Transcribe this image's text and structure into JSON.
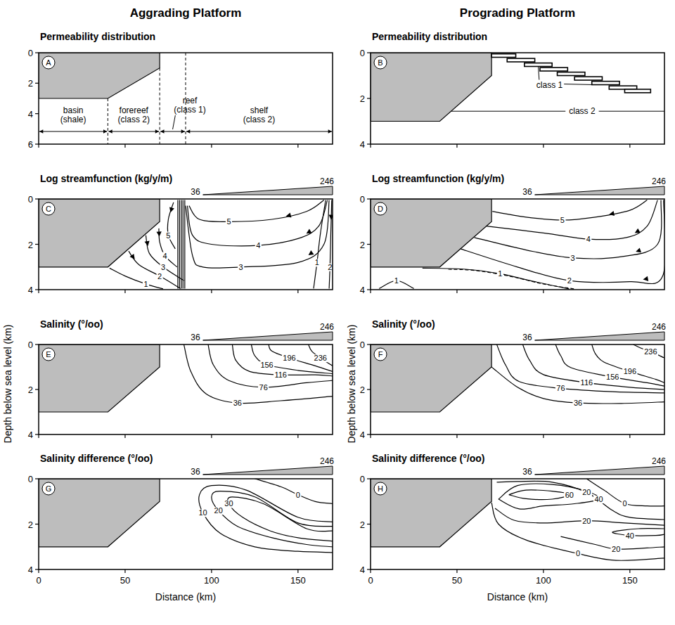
{
  "headers": [
    "Aggrading Platform",
    "Prograding Platform"
  ],
  "grey_region": {
    "x": [
      0,
      70,
      70,
      40,
      0
    ],
    "y": [
      0,
      0,
      1,
      3,
      3
    ]
  },
  "chart_data": [
    {
      "type": "section",
      "label": "A",
      "title": "Permeability distribution",
      "xlim": [
        0,
        170
      ],
      "ylim": [
        0,
        6
      ],
      "xticks": [
        0,
        50,
        100,
        150
      ],
      "yticks": [
        0,
        2,
        4,
        6
      ],
      "tick_labels": "y",
      "zones": [
        {
          "name": "basin",
          "material": "(shale)",
          "from": 0,
          "to": 40
        },
        {
          "name": "forereef",
          "material": "(class 2)",
          "from": 40,
          "to": 70
        },
        {
          "name": "reef",
          "material": "(class 1)",
          "from": 70,
          "to": 85
        },
        {
          "name": "shelf",
          "material": "(class 2)",
          "from": 85,
          "to": 170
        }
      ]
    },
    {
      "type": "section",
      "label": "B",
      "title": "Permeability distribution",
      "xlim": [
        0,
        170
      ],
      "ylim": [
        0,
        4
      ],
      "xticks": [
        0,
        50,
        100,
        150
      ],
      "yticks": [
        0,
        2,
        4
      ],
      "tick_labels": "y",
      "layers": {
        "name": "class 1",
        "x_start": [
          70,
          79,
          89,
          98,
          108,
          118,
          128,
          138,
          147
        ],
        "x_end": [
          84,
          95,
          105,
          114,
          124,
          134,
          144,
          154,
          162
        ],
        "top": [
          0.05,
          0.25,
          0.45,
          0.65,
          0.85,
          1.05,
          1.25,
          1.45,
          1.6
        ],
        "bottom": [
          0.2,
          0.4,
          0.6,
          0.8,
          1.0,
          1.2,
          1.4,
          1.6,
          1.75
        ]
      },
      "matrix": "class 2"
    },
    {
      "type": "contour",
      "label": "C",
      "title": "Log streamfunction (kg/y/m)",
      "xlim": [
        0,
        170
      ],
      "ylim": [
        0,
        4
      ],
      "xticks": [
        0,
        50,
        100,
        150
      ],
      "yticks": [
        0,
        2,
        4
      ],
      "tick_labels": "y",
      "surface_salinity": {
        "values": [
          36,
          246
        ],
        "x": [
          95,
          170
        ]
      },
      "series": [
        {
          "level": 5,
          "marker": "arrow",
          "x": [
            165,
            155,
            135,
            110,
            93,
            87
          ],
          "y": [
            0.05,
            0.55,
            0.9,
            1.0,
            0.9,
            0.3
          ]
        },
        {
          "level": 4,
          "marker": "arrow",
          "x": [
            167,
            162,
            150,
            127,
            100,
            89,
            86
          ],
          "y": [
            0.05,
            1.2,
            1.75,
            2.05,
            2.0,
            1.6,
            0.3
          ]
        },
        {
          "level": 3,
          "marker": "arrow",
          "x": [
            168,
            165,
            150,
            117,
            95,
            89,
            85
          ],
          "y": [
            0.05,
            2.0,
            2.8,
            3.0,
            3.0,
            2.5,
            0.3
          ]
        },
        {
          "level": 2,
          "marker": "arrow",
          "x": [
            169.5,
            169,
            168.5,
            168
          ],
          "y": [
            0.05,
            1.5,
            3.0,
            3.95
          ]
        },
        {
          "level": 1,
          "x": [
            166,
            163,
            161,
            159
          ],
          "y": [
            0.05,
            1.5,
            2.8,
            3.95
          ]
        },
        {
          "level": null,
          "x": [
            80.5,
            80.5
          ],
          "y": [
            0.05,
            3.95
          ]
        },
        {
          "level": null,
          "x": [
            81.5,
            81.5
          ],
          "y": [
            0.05,
            3.95
          ]
        },
        {
          "level": null,
          "x": [
            82.5,
            82.5
          ],
          "y": [
            0.05,
            3.95
          ]
        },
        {
          "level": null,
          "x": [
            83.5,
            83.5
          ],
          "y": [
            0.05,
            3.95
          ]
        },
        {
          "level": null,
          "x": [
            84.5,
            84.5
          ],
          "y": [
            0.05,
            3.95
          ]
        },
        {
          "level": 5,
          "marker": "arrow",
          "x": [
            78,
            75,
            75,
            79
          ],
          "y": [
            0.15,
            0.9,
            1.6,
            2.2
          ]
        },
        {
          "level": 4,
          "marker": "arrow",
          "x": [
            69.5,
            70,
            73,
            80
          ],
          "y": [
            1.3,
            1.9,
            2.5,
            3.0
          ]
        },
        {
          "level": 3,
          "marker": "arrow",
          "x": [
            62,
            64,
            72,
            84
          ],
          "y": [
            1.6,
            2.4,
            3.0,
            3.6
          ]
        },
        {
          "level": 2,
          "marker": "arrow",
          "x": [
            52,
            58,
            70,
            82
          ],
          "y": [
            2.3,
            2.9,
            3.4,
            3.95
          ]
        },
        {
          "level": 1,
          "x": [
            41,
            50,
            62,
            72
          ],
          "y": [
            3.05,
            3.4,
            3.75,
            3.97
          ]
        }
      ]
    },
    {
      "type": "contour",
      "label": "D",
      "title": "Log streamfunction (kg/y/m)",
      "xlim": [
        0,
        170
      ],
      "ylim": [
        0,
        4
      ],
      "xticks": [
        0,
        50,
        100,
        150
      ],
      "yticks": [
        0,
        2,
        4
      ],
      "tick_labels": "y",
      "surface_salinity": {
        "values": [
          36,
          246
        ],
        "x": [
          95,
          170
        ]
      },
      "series": [
        {
          "level": 5,
          "marker": "arrow",
          "x": [
            160,
            150,
            130,
            111,
            90,
            70.5
          ],
          "y": [
            0.05,
            0.5,
            0.8,
            0.93,
            0.8,
            0.55
          ]
        },
        {
          "level": 4,
          "marker": "arrow",
          "x": [
            166,
            160,
            148,
            126,
            100,
            67
          ],
          "y": [
            0.05,
            1.2,
            1.7,
            1.77,
            1.5,
            1.2
          ]
        },
        {
          "level": 3,
          "marker": "arrow",
          "x": [
            168,
            166,
            145,
            117,
            90,
            60
          ],
          "y": [
            0.05,
            2.0,
            2.55,
            2.6,
            2.25,
            1.7
          ]
        },
        {
          "level": 2,
          "marker": "arrow",
          "x": [
            169.5,
            169,
            150,
            115,
            85,
            52
          ],
          "y": [
            0.05,
            3.4,
            3.65,
            3.6,
            3.0,
            2.2
          ]
        },
        {
          "level": 1,
          "x": [
            30,
            55,
            75,
            95,
            115
          ],
          "y": [
            3.05,
            3.1,
            3.3,
            3.65,
            3.97
          ]
        },
        {
          "level": null,
          "line_style": "dashed",
          "x": [
            45,
            60,
            80,
            100,
            118
          ],
          "y": [
            3.1,
            3.15,
            3.4,
            3.75,
            3.97
          ]
        },
        {
          "level": 1,
          "x": [
            5,
            15,
            25
          ],
          "y": [
            3.95,
            3.6,
            3.95
          ]
        }
      ]
    },
    {
      "type": "contour",
      "label": "E",
      "title": "Salinity (°/oo)",
      "ylabel": "Depth below sea level (km)",
      "xlim": [
        0,
        170
      ],
      "ylim": [
        0,
        4
      ],
      "xticks": [
        0,
        50,
        100,
        150
      ],
      "yticks": [
        0,
        2,
        4
      ],
      "tick_labels": "y",
      "surface_salinity": {
        "values": [
          36,
          246
        ],
        "x": [
          95,
          170
        ]
      },
      "series": [
        {
          "level": 36,
          "x": [
            84,
            88,
            97,
            115,
            140,
            170
          ],
          "y": [
            0,
            1.2,
            2.2,
            2.6,
            2.5,
            2.3
          ]
        },
        {
          "level": 76,
          "x": [
            98,
            101,
            110,
            130,
            155,
            170
          ],
          "y": [
            0,
            0.9,
            1.6,
            1.9,
            1.7,
            1.6
          ]
        },
        {
          "level": 116,
          "x": [
            112,
            114,
            122,
            140,
            160,
            170
          ],
          "y": [
            0,
            0.7,
            1.2,
            1.35,
            1.35,
            1.4
          ]
        },
        {
          "level": 156,
          "x": [
            123,
            125,
            132,
            150,
            170
          ],
          "y": [
            0,
            0.5,
            0.9,
            1.15,
            1.3
          ]
        },
        {
          "level": 196,
          "x": [
            133,
            135,
            145,
            160,
            170
          ],
          "y": [
            0,
            0.3,
            0.6,
            0.95,
            1.2
          ]
        },
        {
          "level": 236,
          "x": [
            156,
            158,
            163,
            170
          ],
          "y": [
            0,
            0.3,
            0.6,
            0.95
          ]
        }
      ]
    },
    {
      "type": "contour",
      "label": "F",
      "title": "Salinity (°/oo)",
      "ylabel": "Depth below sea level (km)",
      "xlim": [
        0,
        170
      ],
      "ylim": [
        0,
        4
      ],
      "xticks": [
        0,
        50,
        100,
        150
      ],
      "yticks": [
        0,
        2,
        4
      ],
      "tick_labels": "y",
      "surface_salinity": {
        "values": [
          36,
          246
        ],
        "x": [
          95,
          170
        ]
      },
      "series": [
        {
          "level": 36,
          "x": [
            70,
            85,
            100,
            120,
            145,
            170
          ],
          "y": [
            1.0,
            1.9,
            2.4,
            2.6,
            2.62,
            2.55
          ]
        },
        {
          "level": 76,
          "x": [
            73,
            78,
            86,
            110,
            140,
            170
          ],
          "y": [
            0,
            0.9,
            1.65,
            1.95,
            2.1,
            2.15
          ]
        },
        {
          "level": 116,
          "x": [
            88,
            92,
            100,
            125,
            150,
            170
          ],
          "y": [
            0,
            0.7,
            1.34,
            1.7,
            1.9,
            2.0
          ]
        },
        {
          "level": 156,
          "x": [
            107,
            110,
            116,
            140,
            160,
            170
          ],
          "y": [
            0,
            0.5,
            1.03,
            1.45,
            1.7,
            1.85
          ]
        },
        {
          "level": 196,
          "x": [
            128,
            130,
            135,
            150,
            165,
            170
          ],
          "y": [
            0,
            0.4,
            0.78,
            1.2,
            1.55,
            1.7
          ]
        },
        {
          "level": 236,
          "x": [
            152,
            156,
            162,
            170
          ],
          "y": [
            0,
            0.15,
            0.31,
            0.6
          ]
        }
      ]
    },
    {
      "type": "contour",
      "label": "G",
      "title": "Salinity difference (°/oo)",
      "xlabel": "Distance (km)",
      "xlim": [
        0,
        170
      ],
      "ylim": [
        0,
        4
      ],
      "xticks": [
        0,
        50,
        100,
        150
      ],
      "yticks": [
        0,
        2,
        4
      ],
      "surface_salinity": {
        "values": [
          36,
          246
        ],
        "x": [
          95,
          170
        ]
      },
      "series": [
        {
          "level": 0,
          "x": [
            125,
            140,
            150,
            160,
            170
          ],
          "y": [
            0.0,
            0.35,
            0.7,
            1.0,
            1.1
          ]
        },
        {
          "level": 10,
          "x": [
            170,
            150,
            120,
            100,
            93,
            95,
            105,
            125,
            150,
            170
          ],
          "y": [
            1.9,
            1.7,
            0.5,
            0.3,
            0.7,
            1.5,
            2.4,
            3.0,
            3.2,
            3.25
          ]
        },
        {
          "level": 20,
          "x": [
            170,
            150,
            125,
            105,
            100,
            104,
            115,
            135,
            155,
            170
          ],
          "y": [
            2.1,
            1.95,
            0.8,
            0.55,
            0.8,
            1.4,
            2.1,
            2.6,
            2.9,
            3.0
          ]
        },
        {
          "level": 30,
          "x": [
            170,
            155,
            130,
            112,
            110,
            118,
            134,
            150,
            170
          ],
          "y": [
            2.3,
            2.2,
            1.1,
            0.8,
            1.1,
            1.7,
            2.3,
            2.6,
            2.75
          ]
        }
      ]
    },
    {
      "type": "contour",
      "label": "H",
      "title": "Salinity difference (°/oo)",
      "xlabel": "Distance (km)",
      "xlim": [
        0,
        170
      ],
      "ylim": [
        0,
        4
      ],
      "xticks": [
        0,
        50,
        100,
        150
      ],
      "yticks": [
        0,
        2,
        4
      ],
      "surface_salinity": {
        "values": [
          36,
          246
        ],
        "x": [
          95,
          170
        ]
      },
      "series": [
        {
          "level": 60,
          "x": [
            80,
            90,
            105,
            115,
            105,
            90,
            80
          ],
          "y": [
            0.7,
            0.5,
            0.55,
            0.7,
            0.9,
            0.88,
            0.7
          ]
        },
        {
          "level": 40,
          "x": [
            74,
            85,
            105,
            125,
            132,
            118,
            100,
            86,
            74
          ],
          "y": [
            0.9,
            0.3,
            0.25,
            0.55,
            0.9,
            1.1,
            1.2,
            1.33,
            0.9
          ]
        },
        {
          "level": 0,
          "x": [
            125,
            135,
            147,
            160,
            170
          ],
          "y": [
            0.0,
            0.5,
            1.09,
            1.2,
            1.2
          ]
        },
        {
          "level": 20,
          "x": [
            73,
            85,
            105,
            125,
            140,
            150,
            170
          ],
          "y": [
            0.15,
            0.12,
            0.15,
            0.6,
            1.4,
            1.7,
            1.8
          ]
        },
        {
          "level": 20,
          "x": [
            72,
            83,
            100,
            125,
            147,
            170
          ],
          "y": [
            1.3,
            1.83,
            1.95,
            1.85,
            1.95,
            2.05
          ]
        },
        {
          "level": 40,
          "x": [
            170,
            155,
            140,
            150,
            165,
            170
          ],
          "y": [
            2.2,
            2.2,
            2.35,
            2.5,
            2.5,
            2.45
          ]
        },
        {
          "level": 20,
          "x": [
            110,
            130,
            142,
            160,
            170
          ],
          "y": [
            2.55,
            2.9,
            3.1,
            3.05,
            3.0
          ]
        },
        {
          "level": 0,
          "x": [
            70,
            74,
            90,
            120,
            142,
            170
          ],
          "y": [
            1.05,
            2.0,
            2.7,
            3.3,
            3.6,
            3.5
          ]
        }
      ]
    }
  ]
}
